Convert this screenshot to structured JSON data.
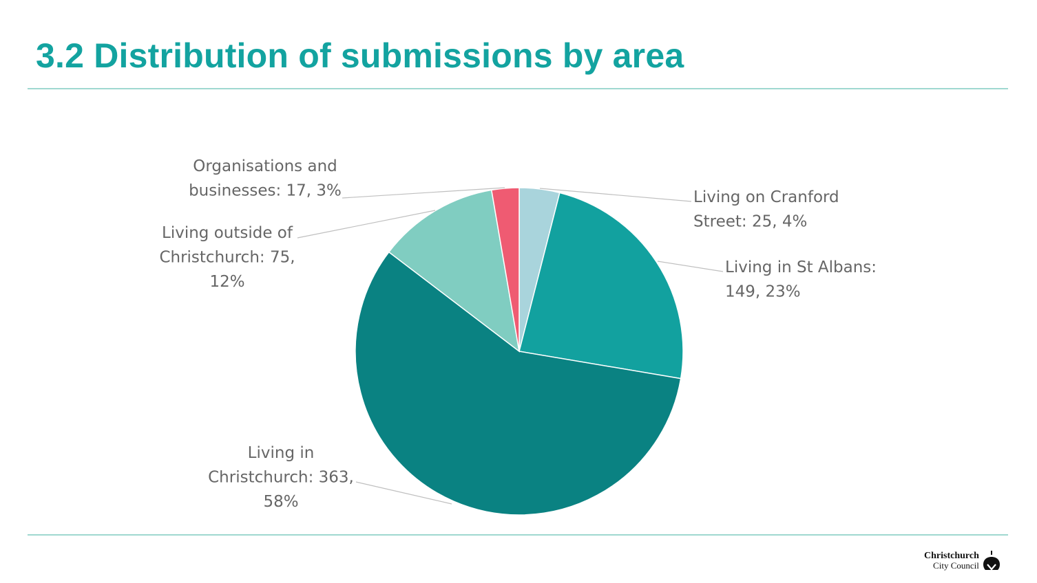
{
  "slide": {
    "title": "3.2 Distribution of submissions by area"
  },
  "branding": {
    "line1": "Christchurch",
    "line2": "City Council",
    "icon": "cathedral-logo-icon"
  },
  "colors": {
    "accent": "#13a3a0",
    "rule": "#9fd8d0",
    "label": "#666666"
  },
  "chart_data": {
    "type": "pie",
    "title": "",
    "legend": "none",
    "start_angle_deg": 0,
    "direction": "clockwise",
    "slices": [
      {
        "name": "Living on Cranford Street",
        "value": 25,
        "percent": 4,
        "color": "#a9d4dc",
        "label_lines": [
          "Living on Cranford",
          "Street: 25, 4%"
        ]
      },
      {
        "name": "Living in St Albans",
        "value": 149,
        "percent": 23,
        "color": "#12a19f",
        "label_lines": [
          "Living in St Albans:",
          "149, 23%"
        ]
      },
      {
        "name": "Living in Christchurch",
        "value": 363,
        "percent": 58,
        "color": "#0a8282",
        "label_lines": [
          "Living in",
          "Christchurch: 363,",
          "58%"
        ]
      },
      {
        "name": "Living outside of Christchurch",
        "value": 75,
        "percent": 12,
        "color": "#80cdc1",
        "label_lines": [
          "Living outside of",
          "Christchurch: 75,",
          "12%"
        ]
      },
      {
        "name": "Organisations and businesses",
        "value": 17,
        "percent": 3,
        "color": "#ef5b72",
        "label_lines": [
          "Organisations and",
          "businesses: 17, 3%"
        ]
      }
    ]
  }
}
